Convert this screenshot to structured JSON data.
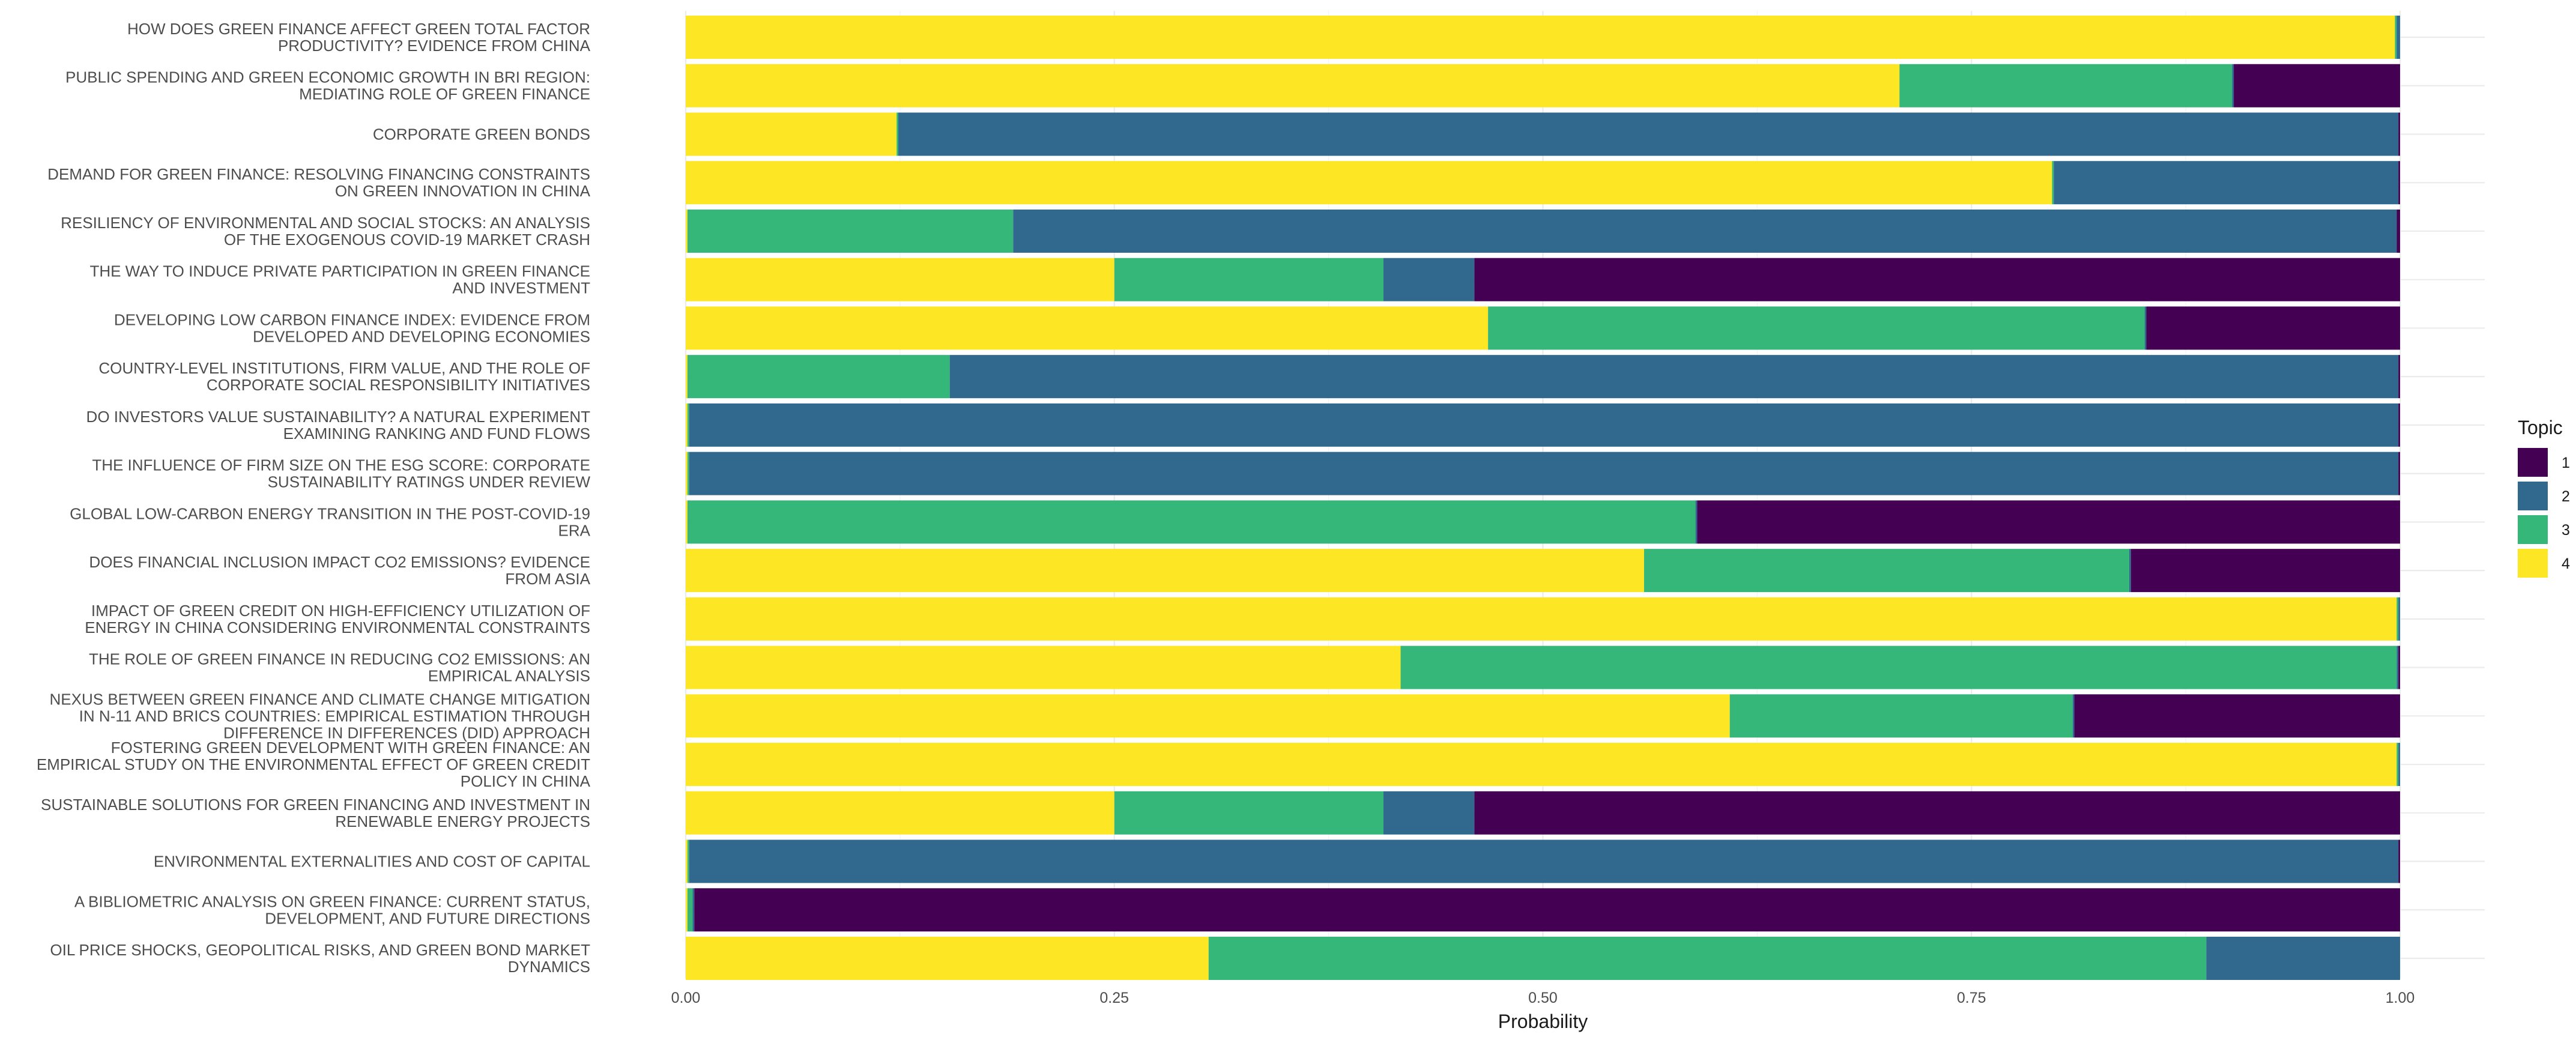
{
  "chart_data": {
    "type": "bar",
    "orientation": "horizontal",
    "stacked": true,
    "xlabel": "Probability",
    "ylabel": "",
    "xlim": [
      0,
      1
    ],
    "x_ticks": [
      "0.00",
      "0.25",
      "0.50",
      "0.75",
      "1.00"
    ],
    "x_tick_values": [
      0,
      0.25,
      0.5,
      0.75,
      1.0
    ],
    "grid": true,
    "legend": {
      "title": "Topic",
      "placement": "right",
      "entries": [
        {
          "label": "1",
          "color": "#440154"
        },
        {
          "label": "2",
          "color": "#31688e"
        },
        {
          "label": "3",
          "color": "#35b779"
        },
        {
          "label": "4",
          "color": "#fde725"
        }
      ]
    },
    "stack_order": [
      "4",
      "3",
      "2",
      "1"
    ],
    "categories": [
      "HOW DOES GREEN FINANCE AFFECT GREEN TOTAL FACTOR|PRODUCTIVITY? EVIDENCE FROM CHINA",
      "PUBLIC SPENDING AND GREEN ECONOMIC GROWTH IN BRI REGION:|MEDIATING ROLE OF GREEN FINANCE",
      "CORPORATE GREEN BONDS",
      "DEMAND FOR GREEN FINANCE: RESOLVING FINANCING CONSTRAINTS|ON GREEN INNOVATION IN CHINA",
      "RESILIENCY OF ENVIRONMENTAL AND SOCIAL STOCKS: AN ANALYSIS|OF THE EXOGENOUS COVID-19 MARKET CRASH",
      "THE WAY TO INDUCE PRIVATE PARTICIPATION IN GREEN FINANCE|AND INVESTMENT",
      "DEVELOPING LOW CARBON FINANCE INDEX: EVIDENCE FROM|DEVELOPED AND DEVELOPING ECONOMIES",
      "COUNTRY-LEVEL INSTITUTIONS, FIRM VALUE, AND THE ROLE OF|CORPORATE SOCIAL RESPONSIBILITY INITIATIVES",
      "DO INVESTORS VALUE SUSTAINABILITY? A NATURAL EXPERIMENT|EXAMINING RANKING AND FUND FLOWS",
      "THE INFLUENCE OF FIRM SIZE ON THE ESG SCORE: CORPORATE|SUSTAINABILITY RATINGS UNDER REVIEW",
      "GLOBAL LOW-CARBON ENERGY TRANSITION IN THE POST-COVID-19|ERA",
      "DOES FINANCIAL INCLUSION IMPACT CO2 EMISSIONS? EVIDENCE|FROM ASIA",
      "IMPACT OF GREEN CREDIT ON HIGH-EFFICIENCY UTILIZATION OF|ENERGY IN CHINA CONSIDERING ENVIRONMENTAL CONSTRAINTS",
      "THE ROLE OF GREEN FINANCE IN REDUCING CO2 EMISSIONS: AN|EMPIRICAL ANALYSIS",
      "NEXUS BETWEEN GREEN FINANCE AND CLIMATE CHANGE MITIGATION|IN N-11 AND BRICS COUNTRIES: EMPIRICAL ESTIMATION THROUGH|DIFFERENCE IN DIFFERENCES (DID) APPROACH",
      "FOSTERING GREEN DEVELOPMENT WITH GREEN FINANCE: AN|EMPIRICAL STUDY ON THE ENVIRONMENTAL EFFECT OF GREEN CREDIT|POLICY IN CHINA",
      "SUSTAINABLE SOLUTIONS FOR GREEN FINANCING AND INVESTMENT IN|RENEWABLE ENERGY PROJECTS",
      "ENVIRONMENTAL EXTERNALITIES AND COST OF CAPITAL",
      "A BIBLIOMETRIC ANALYSIS ON GREEN FINANCE: CURRENT STATUS,|DEVELOPMENT, AND FUTURE DIRECTIONS",
      "OIL PRICE SHOCKS, GEOPOLITICAL RISKS, AND GREEN BOND MARKET|DYNAMICS"
    ],
    "series": [
      {
        "name": "4",
        "values": [
          0.997,
          0.708,
          0.123,
          0.797,
          0.001,
          0.25,
          0.468,
          0.001,
          0.001,
          0.001,
          0.001,
          0.559,
          0.998,
          0.417,
          0.609,
          0.998,
          0.25,
          0.001,
          0.001,
          0.305
        ]
      },
      {
        "name": "3",
        "values": [
          0.001,
          0.194,
          0.001,
          0.001,
          0.19,
          0.157,
          0.383,
          0.153,
          0.001,
          0.001,
          0.588,
          0.283,
          0.001,
          0.581,
          0.2,
          0.001,
          0.157,
          0.001,
          0.003,
          0.582
        ]
      },
      {
        "name": "2",
        "values": [
          0.002,
          0.001,
          0.875,
          0.201,
          0.807,
          0.053,
          0.001,
          0.845,
          0.997,
          0.997,
          0.001,
          0.001,
          0.001,
          0.001,
          0.001,
          0.001,
          0.053,
          0.997,
          0.001,
          0.113
        ]
      },
      {
        "name": "1",
        "values": [
          0.0,
          0.097,
          0.001,
          0.001,
          0.002,
          0.54,
          0.148,
          0.001,
          0.001,
          0.001,
          0.41,
          0.157,
          0.0,
          0.001,
          0.19,
          0.0,
          0.54,
          0.001,
          0.995,
          0.0
        ]
      }
    ]
  }
}
